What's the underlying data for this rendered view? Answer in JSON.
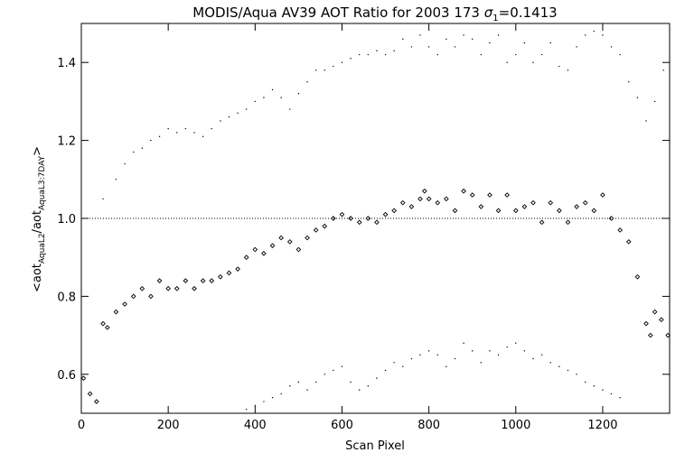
{
  "chart_data": {
    "type": "scatter",
    "title_main": "MODIS/Aqua AV39 AOT Ratio for 2003 173 ",
    "title_sigma": "σ",
    "title_sigma_sub": "1",
    "title_value": "=0.1413",
    "xlabel": "Scan Pixel",
    "ylabel_open": "<aot",
    "ylabel_sub1": "AquaL2",
    "ylabel_mid": "/aot",
    "ylabel_sub2": "AquaL3:7DAY",
    "ylabel_close": ">",
    "xlim": [
      0,
      1354
    ],
    "ylim": [
      0.5,
      1.5
    ],
    "x_ticks": [
      {
        "value": 0,
        "label": "0"
      },
      {
        "value": 200,
        "label": "200"
      },
      {
        "value": 400,
        "label": "400"
      },
      {
        "value": 600,
        "label": "600"
      },
      {
        "value": 800,
        "label": "800"
      },
      {
        "value": 1000,
        "label": "1000"
      },
      {
        "value": 1200,
        "label": "1200"
      }
    ],
    "y_ticks": [
      {
        "value": 0.6,
        "label": "0.6"
      },
      {
        "value": 0.8,
        "label": "0.8"
      },
      {
        "value": 1.0,
        "label": "1.0"
      },
      {
        "value": 1.2,
        "label": "1.2"
      },
      {
        "value": 1.4,
        "label": "1.4"
      }
    ],
    "reference_line": 1.0,
    "grid": false,
    "series": [
      {
        "role": "mean ratio",
        "marker": "diamond",
        "x": [
          5,
          20,
          35,
          50,
          60,
          80,
          100,
          120,
          140,
          160,
          180,
          200,
          220,
          240,
          260,
          280,
          300,
          320,
          340,
          360,
          380,
          400,
          420,
          440,
          460,
          480,
          500,
          520,
          540,
          560,
          580,
          600,
          620,
          640,
          660,
          680,
          700,
          720,
          740,
          760,
          780,
          790,
          800,
          820,
          840,
          860,
          880,
          900,
          920,
          940,
          960,
          980,
          1000,
          1020,
          1040,
          1060,
          1080,
          1100,
          1120,
          1140,
          1160,
          1180,
          1200,
          1220,
          1240,
          1260,
          1280,
          1300,
          1310,
          1320,
          1335,
          1350
        ],
        "y": [
          0.59,
          0.55,
          0.53,
          0.73,
          0.72,
          0.76,
          0.78,
          0.8,
          0.82,
          0.8,
          0.84,
          0.82,
          0.82,
          0.84,
          0.82,
          0.84,
          0.84,
          0.85,
          0.86,
          0.87,
          0.9,
          0.92,
          0.91,
          0.93,
          0.95,
          0.94,
          0.92,
          0.95,
          0.97,
          0.98,
          1.0,
          1.01,
          1.0,
          0.99,
          1.0,
          0.99,
          1.01,
          1.02,
          1.04,
          1.03,
          1.05,
          1.07,
          1.05,
          1.04,
          1.05,
          1.02,
          1.07,
          1.06,
          1.03,
          1.06,
          1.02,
          1.06,
          1.02,
          1.03,
          1.04,
          0.99,
          1.04,
          1.02,
          0.99,
          1.03,
          1.04,
          1.02,
          1.06,
          1.0,
          0.97,
          0.94,
          0.85,
          0.73,
          0.7,
          0.76,
          0.74,
          0.7
        ]
      },
      {
        "role": "mean + sigma",
        "marker": "dot",
        "x": [
          50,
          80,
          100,
          120,
          140,
          160,
          180,
          200,
          220,
          240,
          260,
          280,
          300,
          320,
          340,
          360,
          380,
          400,
          420,
          440,
          460,
          480,
          500,
          520,
          540,
          560,
          580,
          600,
          620,
          640,
          660,
          680,
          700,
          720,
          740,
          760,
          780,
          800,
          820,
          840,
          860,
          880,
          900,
          920,
          940,
          960,
          980,
          1000,
          1020,
          1040,
          1060,
          1080,
          1100,
          1120,
          1140,
          1160,
          1180,
          1200,
          1220,
          1240,
          1260,
          1280,
          1300,
          1320,
          1340
        ],
        "y": [
          1.05,
          1.1,
          1.14,
          1.17,
          1.18,
          1.2,
          1.21,
          1.23,
          1.22,
          1.23,
          1.22,
          1.21,
          1.23,
          1.25,
          1.26,
          1.27,
          1.28,
          1.3,
          1.31,
          1.33,
          1.31,
          1.28,
          1.32,
          1.35,
          1.38,
          1.38,
          1.39,
          1.4,
          1.41,
          1.42,
          1.42,
          1.43,
          1.42,
          1.43,
          1.46,
          1.44,
          1.47,
          1.44,
          1.42,
          1.46,
          1.44,
          1.47,
          1.46,
          1.42,
          1.45,
          1.47,
          1.4,
          1.42,
          1.45,
          1.4,
          1.42,
          1.45,
          1.39,
          1.38,
          1.44,
          1.47,
          1.48,
          1.47,
          1.44,
          1.42,
          1.35,
          1.31,
          1.25,
          1.3,
          1.38
        ]
      },
      {
        "role": "mean - sigma",
        "marker": "dot",
        "x": [
          380,
          400,
          420,
          440,
          460,
          480,
          500,
          520,
          540,
          560,
          580,
          600,
          620,
          640,
          660,
          680,
          700,
          720,
          740,
          760,
          780,
          800,
          820,
          840,
          860,
          880,
          900,
          920,
          940,
          960,
          980,
          1000,
          1020,
          1040,
          1060,
          1080,
          1100,
          1120,
          1140,
          1160,
          1180,
          1200,
          1220,
          1240
        ],
        "y": [
          0.51,
          0.52,
          0.53,
          0.54,
          0.55,
          0.57,
          0.58,
          0.56,
          0.58,
          0.6,
          0.61,
          0.62,
          0.58,
          0.56,
          0.57,
          0.59,
          0.61,
          0.63,
          0.62,
          0.64,
          0.65,
          0.66,
          0.65,
          0.62,
          0.64,
          0.68,
          0.66,
          0.63,
          0.66,
          0.65,
          0.67,
          0.68,
          0.66,
          0.64,
          0.65,
          0.63,
          0.62,
          0.61,
          0.6,
          0.58,
          0.57,
          0.56,
          0.55,
          0.54
        ]
      }
    ]
  }
}
